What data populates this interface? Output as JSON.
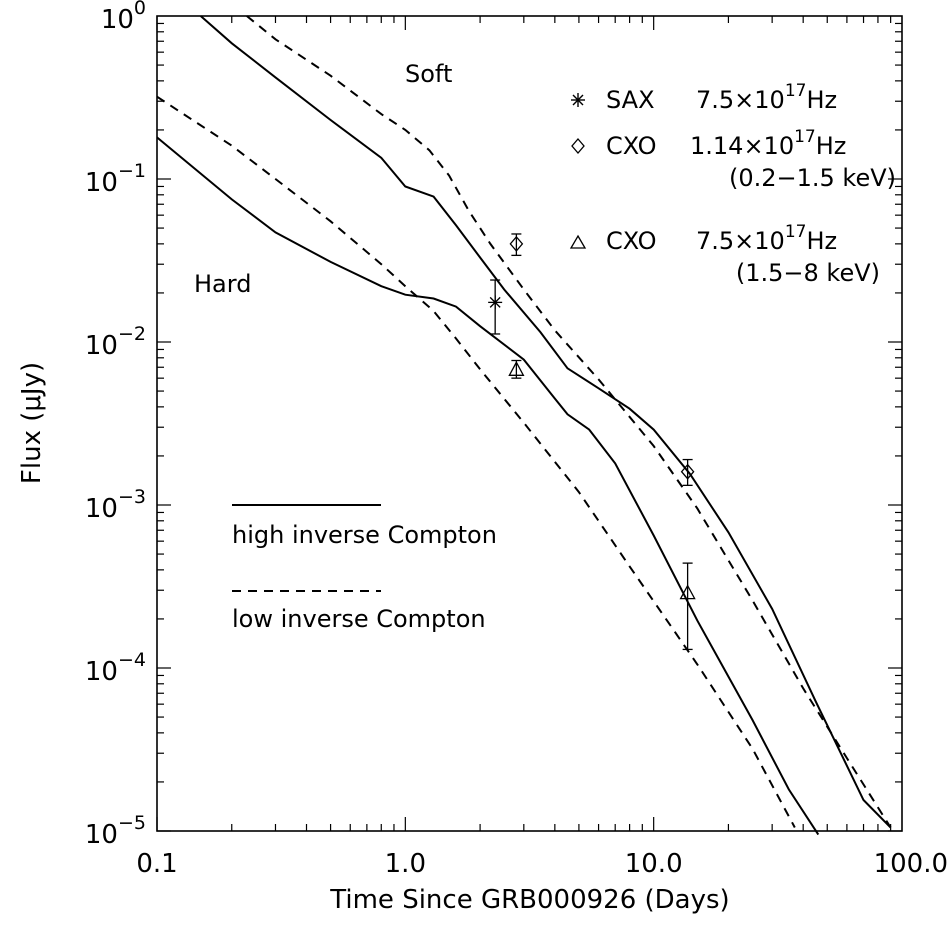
{
  "chart_data": {
    "type": "line",
    "xlabel": "Time Since GRB000926 (Days)",
    "ylabel": "Flux (μJy)",
    "xscale": "log",
    "yscale": "log",
    "xlim": [
      0.1,
      100
    ],
    "ylim": [
      1e-05,
      1
    ],
    "x_tick_labels": [
      "0.1",
      "1.0",
      "10.0",
      "100.0"
    ],
    "x_tick_values": [
      0.1,
      1,
      10,
      100
    ],
    "y_tick_values": [
      1e-05,
      0.0001,
      0.001,
      0.01,
      0.1,
      1
    ],
    "y_tick_labels": [
      {
        "base": "10",
        "exp": "−5"
      },
      {
        "base": "10",
        "exp": "−4"
      },
      {
        "base": "10",
        "exp": "−3"
      },
      {
        "base": "10",
        "exp": "−2"
      },
      {
        "base": "10",
        "exp": "−1"
      },
      {
        "base": "10",
        "exp": "0"
      }
    ],
    "grid": false,
    "region_labels": {
      "soft": "Soft",
      "hard": "Hard"
    },
    "curve_styles": [
      {
        "style": "solid",
        "label": "high inverse Compton"
      },
      {
        "style": "dashed",
        "label": "low inverse Compton"
      }
    ],
    "series": [
      {
        "band": "soft",
        "style": "solid",
        "points": [
          [
            0.15,
            1.0
          ],
          [
            0.2,
            0.68
          ],
          [
            0.3,
            0.42
          ],
          [
            0.5,
            0.23
          ],
          [
            0.8,
            0.135
          ],
          [
            1.0,
            0.09
          ],
          [
            1.3,
            0.078
          ],
          [
            1.6,
            0.052
          ],
          [
            2.0,
            0.033
          ],
          [
            2.5,
            0.021
          ],
          [
            3.5,
            0.0115
          ],
          [
            4.5,
            0.0069
          ],
          [
            6.0,
            0.0052
          ],
          [
            8.0,
            0.0039
          ],
          [
            10.0,
            0.0029
          ],
          [
            14.0,
            0.00155
          ],
          [
            20.0,
            0.00068
          ],
          [
            30.0,
            0.00023
          ],
          [
            45.0,
            6.2e-05
          ],
          [
            70.0,
            1.55e-05
          ],
          [
            90.0,
            1.05e-05
          ]
        ]
      },
      {
        "band": "soft",
        "style": "dashed",
        "points": [
          [
            0.23,
            1.0
          ],
          [
            0.3,
            0.72
          ],
          [
            0.5,
            0.43
          ],
          [
            0.8,
            0.25
          ],
          [
            1.0,
            0.2
          ],
          [
            1.25,
            0.15
          ],
          [
            1.5,
            0.105
          ],
          [
            1.8,
            0.064
          ],
          [
            2.2,
            0.04
          ],
          [
            3.0,
            0.021
          ],
          [
            4.0,
            0.0118
          ],
          [
            6.0,
            0.0059
          ],
          [
            10.0,
            0.0023
          ],
          [
            15.0,
            0.00095
          ],
          [
            25.0,
            0.00026
          ],
          [
            40.0,
            7.5e-05
          ],
          [
            60.0,
            2.8e-05
          ],
          [
            90.0,
            1.05e-05
          ]
        ]
      },
      {
        "band": "hard",
        "style": "solid",
        "points": [
          [
            0.1,
            0.18
          ],
          [
            0.2,
            0.075
          ],
          [
            0.3,
            0.047
          ],
          [
            0.5,
            0.031
          ],
          [
            0.8,
            0.022
          ],
          [
            1.0,
            0.0195
          ],
          [
            1.3,
            0.0185
          ],
          [
            1.6,
            0.0165
          ],
          [
            2.0,
            0.0125
          ],
          [
            3.0,
            0.0078
          ],
          [
            4.0,
            0.0045
          ],
          [
            4.5,
            0.0036
          ],
          [
            5.5,
            0.0029
          ],
          [
            7.0,
            0.0018
          ],
          [
            10.0,
            0.00065
          ],
          [
            15.0,
            0.000195
          ],
          [
            25.0,
            4.8e-05
          ],
          [
            35.0,
            1.8e-05
          ],
          [
            46.0,
            9.5e-06
          ]
        ]
      },
      {
        "band": "hard",
        "style": "dashed",
        "points": [
          [
            0.1,
            0.32
          ],
          [
            0.2,
            0.16
          ],
          [
            0.3,
            0.1
          ],
          [
            0.5,
            0.055
          ],
          [
            0.8,
            0.03
          ],
          [
            1.0,
            0.022
          ],
          [
            1.3,
            0.0155
          ],
          [
            1.6,
            0.0105
          ],
          [
            2.0,
            0.0068
          ],
          [
            3.0,
            0.0032
          ],
          [
            5.0,
            0.0012
          ],
          [
            8.0,
            0.00042
          ],
          [
            15.0,
            0.000105
          ],
          [
            25.0,
            3.2e-05
          ],
          [
            37.0,
            1.05e-05
          ]
        ]
      }
    ],
    "data_points": [
      {
        "marker": "asterisk",
        "legend": "SAX",
        "freq_coef": "7.5×10",
        "freq_exp": "17",
        "unit": "Hz",
        "band": "",
        "x": 2.3,
        "y": 0.0175,
        "y_low": 0.0112,
        "y_high": 0.024
      },
      {
        "marker": "diamond",
        "legend": "CXO",
        "freq_coef": "1.14×10",
        "freq_exp": "17",
        "unit": "Hz",
        "band": "(0.2−1.5 keV)",
        "x": 2.8,
        "y": 0.04,
        "y_low": 0.034,
        "y_high": 0.046
      },
      {
        "marker": "diamond",
        "legend": "",
        "freq_coef": "",
        "freq_exp": "",
        "unit": "",
        "band": "",
        "x": 13.7,
        "y": 0.0016,
        "y_low": 0.00132,
        "y_high": 0.0019
      },
      {
        "marker": "triangle",
        "legend": "CXO",
        "freq_coef": "7.5×10",
        "freq_exp": "17",
        "unit": "Hz",
        "band": "(1.5−8 keV)",
        "x": 2.8,
        "y": 0.0068,
        "y_low": 0.006,
        "y_high": 0.0077
      },
      {
        "marker": "triangle",
        "legend": "",
        "freq_coef": "",
        "freq_exp": "",
        "unit": "",
        "band": "",
        "x": 13.7,
        "y": 0.00029,
        "y_low": 0.00013,
        "y_high": 0.00044
      }
    ],
    "legend_location": "top-right"
  }
}
